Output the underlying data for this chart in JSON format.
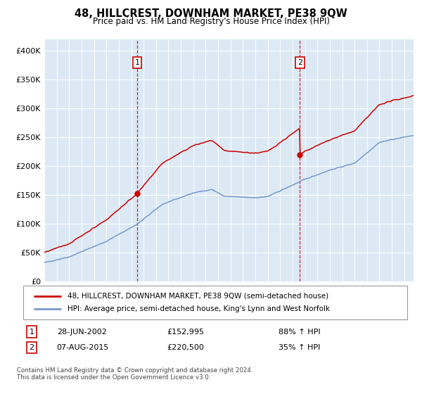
{
  "title": "48, HILLCREST, DOWNHAM MARKET, PE38 9QW",
  "subtitle": "Price paid vs. HM Land Registry's House Price Index (HPI)",
  "outer_bg": "#ffffff",
  "plot_bg_color": "#dce9f5",
  "red_color": "#cc0000",
  "blue_color": "#7799cc",
  "red_line_label": "48, HILLCREST, DOWNHAM MARKET, PE38 9QW (semi-detached house)",
  "blue_line_label": "HPI: Average price, semi-detached house, King's Lynn and West Norfolk",
  "footer": "Contains HM Land Registry data © Crown copyright and database right 2024.\nThis data is licensed under the Open Government Licence v3.0.",
  "annotation1": {
    "label": "1",
    "date": "28-JUN-2002",
    "price": "£152,995",
    "pct": "88% ↑ HPI"
  },
  "annotation2": {
    "label": "2",
    "date": "07-AUG-2015",
    "price": "£220,500",
    "pct": "35% ↑ HPI"
  },
  "ylim": [
    0,
    420000
  ],
  "yticks": [
    0,
    50000,
    100000,
    150000,
    200000,
    250000,
    300000,
    350000,
    400000
  ],
  "ytick_labels": [
    "£0",
    "£50K",
    "£100K",
    "£150K",
    "£200K",
    "£250K",
    "£300K",
    "£350K",
    "£400K"
  ],
  "sale1_x": 2002.49,
  "sale1_y": 152995,
  "sale2_x": 2015.59,
  "sale2_y": 220500,
  "vline1_x": 2002.49,
  "vline2_x": 2015.59,
  "xmin": 1995,
  "xmax": 2024.75
}
